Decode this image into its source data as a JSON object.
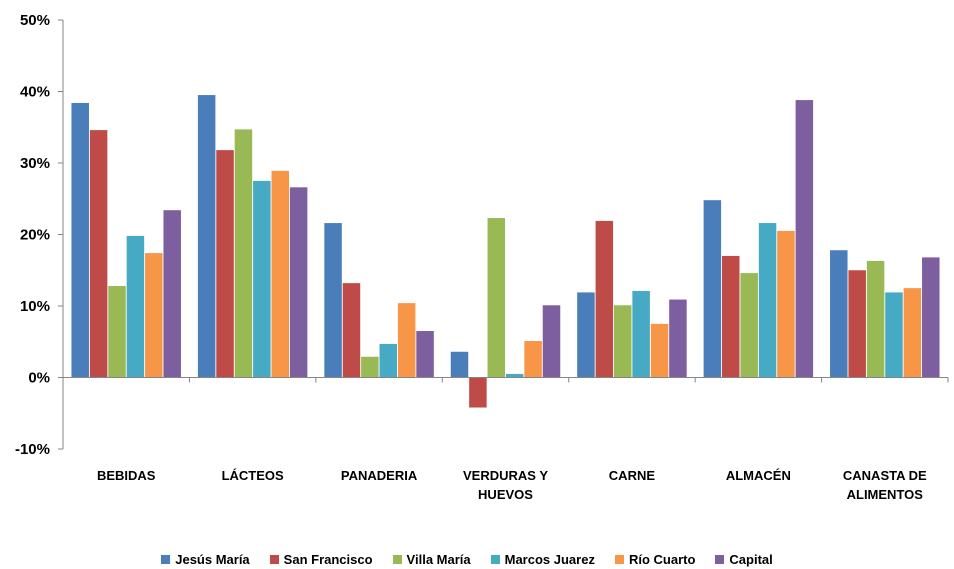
{
  "chart_data": {
    "type": "bar",
    "categories": [
      "BEBIDAS",
      "LÁCTEOS",
      "PANADERIA",
      "VERDURAS Y HUEVOS",
      "CARNE",
      "ALMACÉN",
      "CANASTA DE ALIMENTOS"
    ],
    "category_lines": [
      [
        "BEBIDAS"
      ],
      [
        "LÁCTEOS"
      ],
      [
        "PANADERIA"
      ],
      [
        "VERDURAS Y",
        "HUEVOS"
      ],
      [
        "CARNE"
      ],
      [
        "ALMACÉN"
      ],
      [
        "CANASTA DE",
        "ALIMENTOS"
      ]
    ],
    "series": [
      {
        "name": "Jesús María",
        "color": "#4a7ebb",
        "values": [
          38.4,
          39.5,
          21.6,
          3.6,
          11.9,
          24.8,
          17.8
        ]
      },
      {
        "name": "San Francisco",
        "color": "#be4b48",
        "values": [
          34.6,
          31.8,
          13.2,
          -4.2,
          21.9,
          17.0,
          15.0
        ]
      },
      {
        "name": "Villa María",
        "color": "#98b954",
        "values": [
          12.8,
          34.7,
          2.9,
          22.3,
          10.1,
          14.6,
          16.3
        ]
      },
      {
        "name": "Marcos Juarez",
        "color": "#46aac5",
        "values": [
          19.8,
          27.5,
          4.7,
          0.5,
          12.1,
          21.6,
          11.9
        ]
      },
      {
        "name": "Río Cuarto",
        "color": "#f79646",
        "values": [
          17.4,
          28.9,
          10.4,
          5.1,
          7.5,
          20.5,
          12.5
        ]
      },
      {
        "name": "Capital",
        "color": "#7d5fa0",
        "values": [
          23.4,
          26.6,
          6.5,
          10.1,
          10.9,
          38.8,
          16.8
        ]
      }
    ],
    "ylim": [
      -10,
      50
    ],
    "yticks": [
      50,
      40,
      30,
      20,
      10,
      0,
      -10
    ],
    "ytick_labels": [
      "50%",
      "40%",
      "30%",
      "20%",
      "10%",
      "0%",
      "-10%"
    ],
    "grid": false,
    "legend_position": "bottom",
    "title": "",
    "xlabel": "",
    "ylabel": ""
  }
}
